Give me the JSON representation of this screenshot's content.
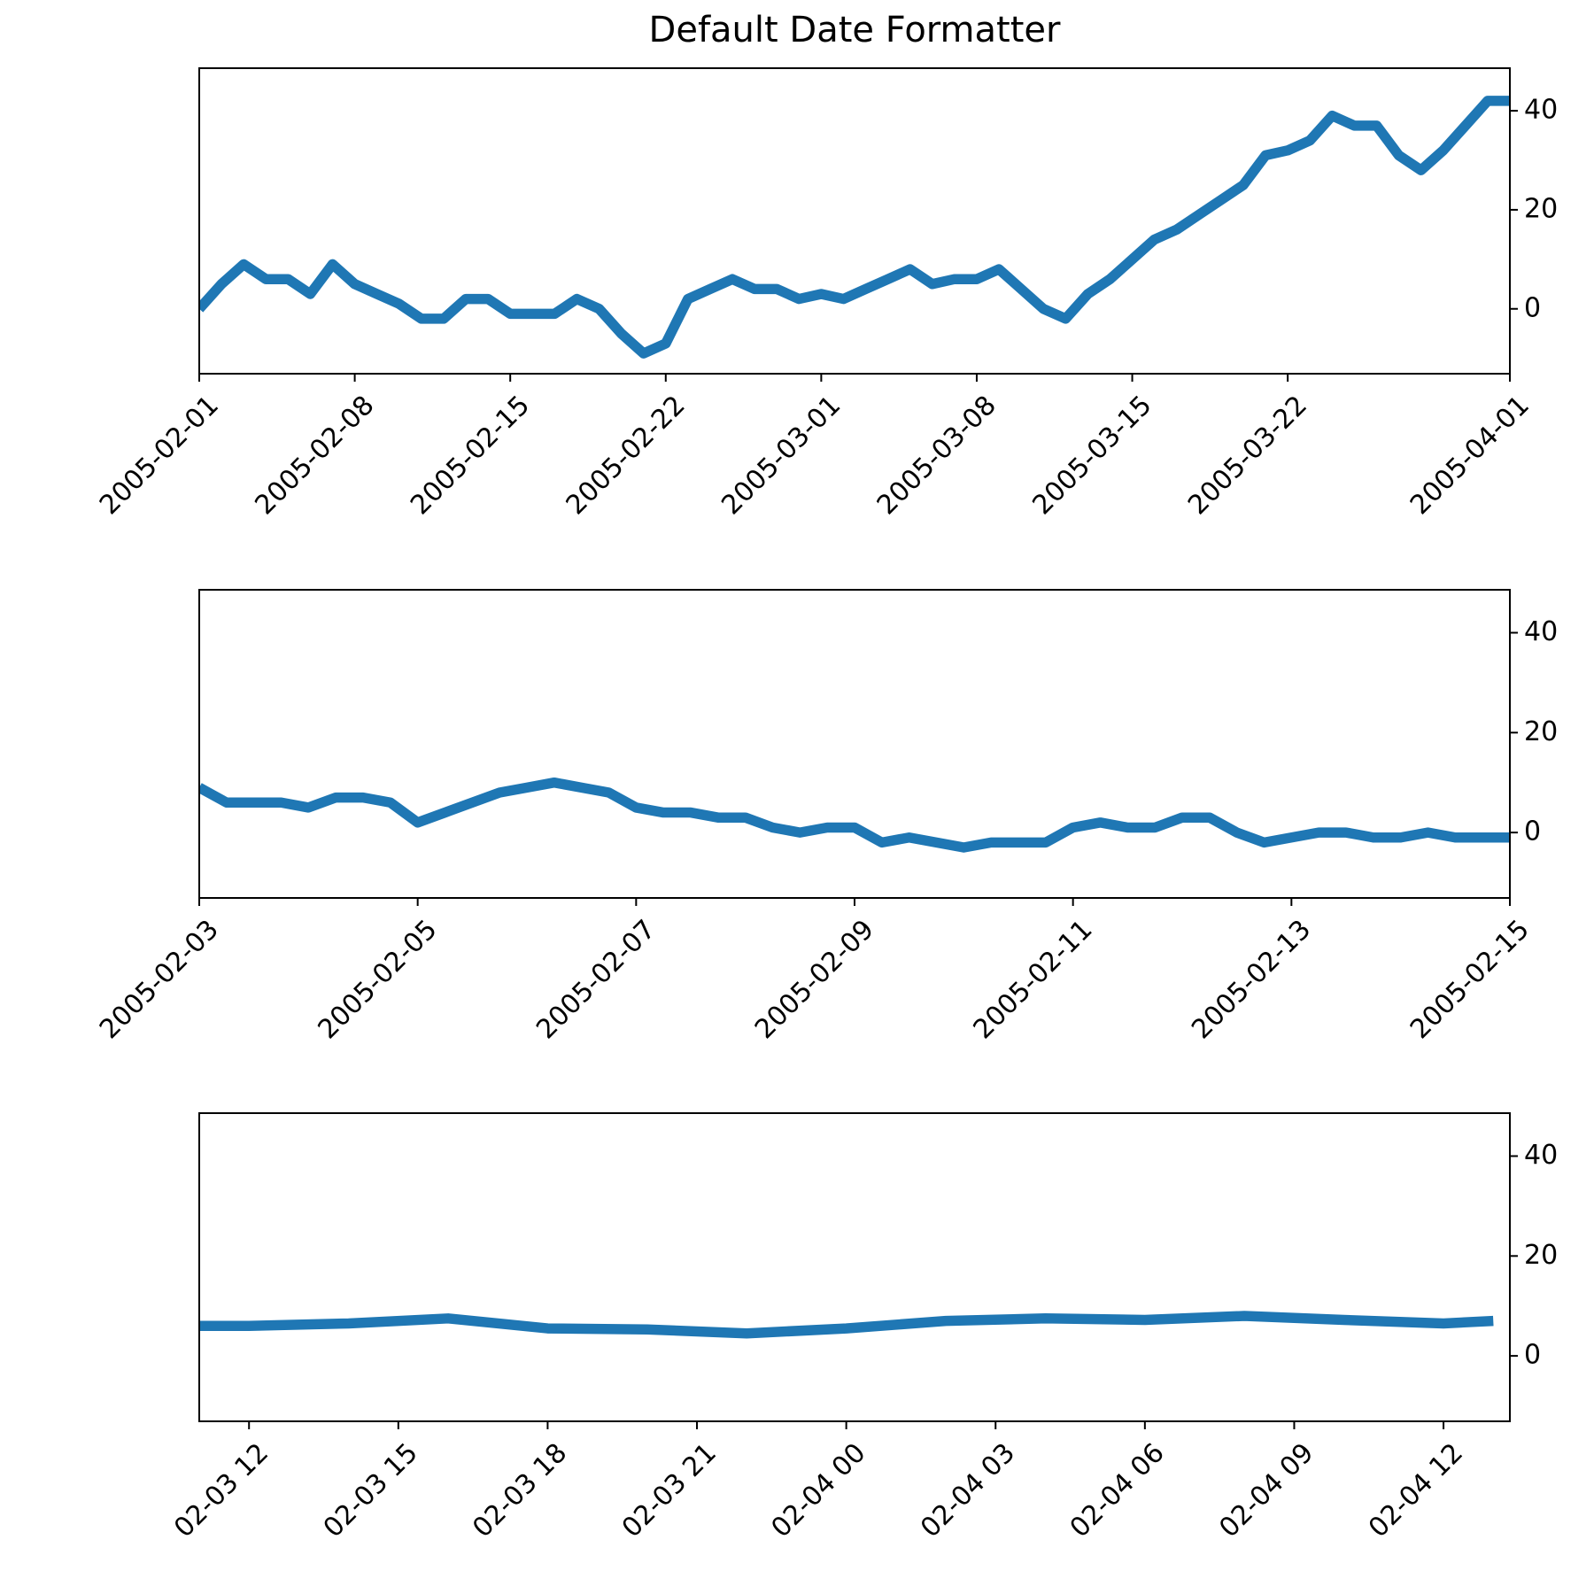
{
  "chart_data": [
    {
      "type": "line",
      "title": "Default Date Formatter",
      "color": "#1f77b4",
      "x": [
        "2005-02-01",
        "2005-02-02",
        "2005-02-03",
        "2005-02-04",
        "2005-02-05",
        "2005-02-06",
        "2005-02-07",
        "2005-02-08",
        "2005-02-09",
        "2005-02-10",
        "2005-02-11",
        "2005-02-12",
        "2005-02-13",
        "2005-02-14",
        "2005-02-15",
        "2005-02-16",
        "2005-02-17",
        "2005-02-18",
        "2005-02-19",
        "2005-02-20",
        "2005-02-21",
        "2005-02-22",
        "2005-02-23",
        "2005-02-24",
        "2005-02-25",
        "2005-02-26",
        "2005-02-27",
        "2005-02-28",
        "2005-03-01",
        "2005-03-02",
        "2005-03-03",
        "2005-03-04",
        "2005-03-05",
        "2005-03-06",
        "2005-03-07",
        "2005-03-08",
        "2005-03-09",
        "2005-03-10",
        "2005-03-11",
        "2005-03-12",
        "2005-03-13",
        "2005-03-14",
        "2005-03-15",
        "2005-03-16",
        "2005-03-17",
        "2005-03-18",
        "2005-03-19",
        "2005-03-20",
        "2005-03-21",
        "2005-03-22",
        "2005-03-23",
        "2005-03-24",
        "2005-03-25",
        "2005-03-26",
        "2005-03-27",
        "2005-03-28",
        "2005-03-29",
        "2005-03-30",
        "2005-03-31",
        "2005-04-01"
      ],
      "values": [
        0,
        5,
        9,
        6,
        6,
        3,
        9,
        5,
        3,
        1,
        -2,
        -2,
        2,
        2,
        -1,
        -1,
        -1,
        2,
        0,
        -5,
        -9,
        -7,
        2,
        4,
        6,
        4,
        4,
        2,
        3,
        2,
        4,
        6,
        8,
        5,
        6,
        6,
        8,
        4,
        0,
        -2,
        3,
        6,
        10,
        14,
        16,
        19,
        22,
        25,
        31,
        32,
        34,
        39,
        37,
        37,
        31,
        28,
        32,
        37,
        42,
        42
      ],
      "xlim": [
        "2005-02-01",
        "2005-04-01"
      ],
      "xticks": [
        "2005-02-01",
        "2005-02-08",
        "2005-02-15",
        "2005-02-22",
        "2005-03-01",
        "2005-03-08",
        "2005-03-15",
        "2005-03-22",
        "2005-04-01"
      ],
      "ylim": [
        -13.1,
        48.6
      ],
      "yticks": [
        0,
        20,
        40
      ]
    },
    {
      "type": "line",
      "color": "#1f77b4",
      "x": [
        "2005-02-03 00:00",
        "2005-02-03 06:00",
        "2005-02-03 12:00",
        "2005-02-03 18:00",
        "2005-02-04 00:00",
        "2005-02-04 06:00",
        "2005-02-04 12:00",
        "2005-02-04 18:00",
        "2005-02-05 00:00",
        "2005-02-05 06:00",
        "2005-02-05 12:00",
        "2005-02-05 18:00",
        "2005-02-06 00:00",
        "2005-02-06 06:00",
        "2005-02-06 12:00",
        "2005-02-06 18:00",
        "2005-02-07 00:00",
        "2005-02-07 06:00",
        "2005-02-07 12:00",
        "2005-02-07 18:00",
        "2005-02-08 00:00",
        "2005-02-08 06:00",
        "2005-02-08 12:00",
        "2005-02-08 18:00",
        "2005-02-09 00:00",
        "2005-02-09 06:00",
        "2005-02-09 12:00",
        "2005-02-09 18:00",
        "2005-02-10 00:00",
        "2005-02-10 06:00",
        "2005-02-10 12:00",
        "2005-02-10 18:00",
        "2005-02-11 00:00",
        "2005-02-11 06:00",
        "2005-02-11 12:00",
        "2005-02-11 18:00",
        "2005-02-12 00:00",
        "2005-02-12 06:00",
        "2005-02-12 12:00",
        "2005-02-12 18:00",
        "2005-02-13 00:00",
        "2005-02-13 06:00",
        "2005-02-13 12:00",
        "2005-02-13 18:00",
        "2005-02-14 00:00",
        "2005-02-14 06:00",
        "2005-02-14 12:00",
        "2005-02-14 18:00",
        "2005-02-15 00:00"
      ],
      "values": [
        9,
        6,
        6,
        6,
        5,
        7,
        7,
        6,
        2,
        4,
        6,
        8,
        9,
        10,
        9,
        8,
        5,
        4,
        4,
        3,
        3,
        1,
        0,
        1,
        1,
        -2,
        -1,
        -2,
        -3,
        -2,
        -2,
        -2,
        1,
        2,
        1,
        1,
        3,
        3,
        0,
        -2,
        -1,
        0,
        0,
        -1,
        -1,
        0,
        -1,
        -1,
        -1
      ],
      "xlim": [
        "2005-02-03",
        "2005-02-15"
      ],
      "xticks": [
        "2005-02-03",
        "2005-02-05",
        "2005-02-07",
        "2005-02-09",
        "2005-02-11",
        "2005-02-13",
        "2005-02-15"
      ],
      "ylim": [
        -13.1,
        48.6
      ],
      "yticks": [
        0,
        20,
        40
      ]
    },
    {
      "type": "line",
      "color": "#1f77b4",
      "x": [
        "02-03 11:00",
        "02-03 12:00",
        "02-03 14:00",
        "02-03 16:00",
        "02-03 18:00",
        "02-03 20:00",
        "02-03 22:00",
        "02-04 00:00",
        "02-04 02:00",
        "02-04 04:00",
        "02-04 06:00",
        "02-04 08:00",
        "02-04 10:00",
        "02-04 12:00",
        "02-04 13:00"
      ],
      "values": [
        6,
        6,
        6.5,
        7.5,
        5.5,
        5.3,
        4.5,
        5.5,
        7,
        7.5,
        7.2,
        8,
        7.2,
        6.5,
        7
      ],
      "xlim": [
        "02-03 11:00",
        "02-04 13:20"
      ],
      "xticks": [
        {
          "value": "02-03 12:00",
          "label": "02-03 12"
        },
        {
          "value": "02-03 15:00",
          "label": "02-03 15"
        },
        {
          "value": "02-03 18:00",
          "label": "02-03 18"
        },
        {
          "value": "02-03 21:00",
          "label": "02-03 21"
        },
        {
          "value": "02-04 00:00",
          "label": "02-04 00"
        },
        {
          "value": "02-04 03:00",
          "label": "02-04 03"
        },
        {
          "value": "02-04 06:00",
          "label": "02-04 06"
        },
        {
          "value": "02-04 09:00",
          "label": "02-04 09"
        },
        {
          "value": "02-04 12:00",
          "label": "02-04 12"
        }
      ],
      "ylim": [
        -13.1,
        48.6
      ],
      "yticks": [
        0,
        20,
        40
      ]
    }
  ]
}
